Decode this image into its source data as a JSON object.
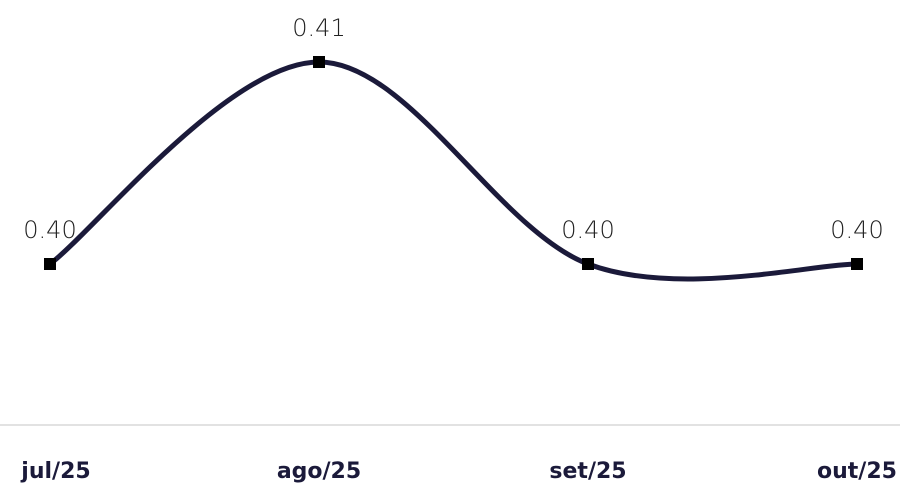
{
  "chart_data": {
    "type": "line",
    "categories": [
      "jul/25",
      "ago/25",
      "set/25",
      "out/25"
    ],
    "series": [
      {
        "values": [
          0.4,
          0.41,
          0.4,
          0.4
        ],
        "data_labels": [
          "0.40",
          "0.41",
          "0.40",
          "0.40"
        ],
        "color": "#1b1a3a"
      }
    ],
    "title": "",
    "xlabel": "",
    "ylabel": "",
    "smooth": true,
    "grid": false,
    "marker": "square"
  }
}
